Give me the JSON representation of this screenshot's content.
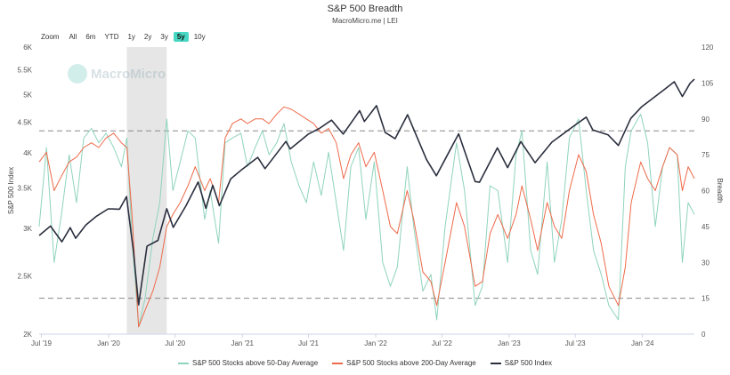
{
  "title": "S&P 500 Breadth",
  "subtitle": "MacroMicro.me | LEI",
  "watermark": "MacroMicro",
  "zoom": {
    "label": "Zoom",
    "buttons": [
      "All",
      "6m",
      "YTD",
      "1y",
      "2y",
      "3y",
      "5y",
      "10y"
    ],
    "active": "5y"
  },
  "colors": {
    "above50": "#8fd3bd",
    "above200": "#ee6a4a",
    "index": "#2b2f3e",
    "shade": "#e6e6e6",
    "refline": "#888888"
  },
  "chart_data": {
    "type": "line",
    "x_tick_labels": [
      "Jul '19",
      "Jan '20",
      "Jul '20",
      "Jan '21",
      "Jul '21",
      "Jan '22",
      "Jul '22",
      "Jan '23",
      "Jul '23",
      "Jan '24"
    ],
    "x_range": [
      "2019-06-25",
      "2024-05-22"
    ],
    "left_axis": {
      "label": "S&P 500 Index",
      "scale": "log",
      "ticks": [
        2000,
        2500,
        3000,
        3500,
        4000,
        4500,
        5000,
        5500,
        6000
      ],
      "tick_labels": [
        "2K",
        "2.5K",
        "3K",
        "3.5K",
        "4K",
        "4.5K",
        "5K",
        "5.5K",
        "6K"
      ],
      "range": [
        2000,
        6000
      ]
    },
    "right_axis": {
      "label": "Breadth",
      "ticks": [
        0,
        15,
        30,
        45,
        60,
        75,
        90,
        105,
        120
      ],
      "range": [
        0,
        120
      ]
    },
    "reference_lines": [
      {
        "axis": "right",
        "value": 85
      },
      {
        "axis": "right",
        "value": 15
      }
    ],
    "shaded_region": {
      "from": "2020-02-20",
      "to": "2020-06-08"
    },
    "series": [
      {
        "name": "S&P 500 Stocks above 50-Day Average",
        "axis": "right",
        "x": [
          "2019-06-25",
          "2019-07-15",
          "2019-08-05",
          "2019-08-25",
          "2019-09-15",
          "2019-10-05",
          "2019-10-25",
          "2019-11-15",
          "2019-12-05",
          "2019-12-25",
          "2020-01-15",
          "2020-02-05",
          "2020-02-20",
          "2020-03-05",
          "2020-03-23",
          "2020-04-10",
          "2020-05-01",
          "2020-05-20",
          "2020-06-08",
          "2020-06-25",
          "2020-07-15",
          "2020-08-05",
          "2020-08-25",
          "2020-09-20",
          "2020-10-05",
          "2020-10-28",
          "2020-11-15",
          "2020-12-05",
          "2020-12-28",
          "2021-01-15",
          "2021-02-05",
          "2021-02-25",
          "2021-03-15",
          "2021-04-05",
          "2021-04-25",
          "2021-05-15",
          "2021-06-05",
          "2021-06-25",
          "2021-07-15",
          "2021-08-05",
          "2021-08-25",
          "2021-09-15",
          "2021-10-05",
          "2021-10-25",
          "2021-11-15",
          "2021-12-05",
          "2021-12-28",
          "2022-01-20",
          "2022-02-10",
          "2022-03-01",
          "2022-03-28",
          "2022-04-15",
          "2022-05-10",
          "2022-06-01",
          "2022-06-17",
          "2022-07-10",
          "2022-08-10",
          "2022-09-01",
          "2022-09-30",
          "2022-10-20",
          "2022-11-10",
          "2022-12-01",
          "2022-12-28",
          "2023-01-20",
          "2023-02-05",
          "2023-03-01",
          "2023-03-20",
          "2023-04-15",
          "2023-05-05",
          "2023-05-25",
          "2023-06-15",
          "2023-07-10",
          "2023-07-31",
          "2023-08-20",
          "2023-09-10",
          "2023-10-01",
          "2023-10-27",
          "2023-11-15",
          "2023-12-01",
          "2023-12-27",
          "2024-01-15",
          "2024-02-05",
          "2024-02-25",
          "2024-03-15",
          "2024-04-05",
          "2024-04-19",
          "2024-05-05",
          "2024-05-22"
        ],
        "values": [
          45,
          78,
          30,
          50,
          75,
          55,
          82,
          86,
          80,
          84,
          78,
          70,
          82,
          40,
          3,
          15,
          40,
          55,
          90,
          60,
          72,
          85,
          82,
          48,
          60,
          38,
          80,
          82,
          84,
          70,
          78,
          85,
          75,
          80,
          88,
          72,
          62,
          55,
          72,
          58,
          76,
          55,
          35,
          70,
          78,
          48,
          72,
          30,
          20,
          28,
          70,
          45,
          18,
          25,
          6,
          45,
          80,
          60,
          12,
          20,
          62,
          60,
          30,
          75,
          85,
          35,
          25,
          72,
          30,
          48,
          82,
          90,
          60,
          35,
          25,
          12,
          6,
          70,
          85,
          92,
          80,
          45,
          70,
          78,
          75,
          30,
          55,
          50
        ]
      },
      {
        "name": "S&P 500 Stocks above 200-Day Average",
        "axis": "right",
        "x": [
          "2019-06-25",
          "2019-07-15",
          "2019-08-05",
          "2019-08-25",
          "2019-09-15",
          "2019-10-05",
          "2019-10-25",
          "2019-11-15",
          "2019-12-05",
          "2019-12-25",
          "2020-01-15",
          "2020-02-05",
          "2020-02-20",
          "2020-03-05",
          "2020-03-23",
          "2020-04-10",
          "2020-05-01",
          "2020-05-20",
          "2020-06-08",
          "2020-06-25",
          "2020-07-15",
          "2020-08-05",
          "2020-08-25",
          "2020-09-20",
          "2020-10-05",
          "2020-10-28",
          "2020-11-15",
          "2020-12-05",
          "2020-12-28",
          "2021-01-15",
          "2021-02-05",
          "2021-02-25",
          "2021-03-15",
          "2021-04-05",
          "2021-04-25",
          "2021-05-15",
          "2021-06-05",
          "2021-06-25",
          "2021-07-15",
          "2021-08-05",
          "2021-08-25",
          "2021-09-15",
          "2021-10-05",
          "2021-10-25",
          "2021-11-15",
          "2021-12-05",
          "2021-12-28",
          "2022-01-20",
          "2022-02-10",
          "2022-03-01",
          "2022-03-28",
          "2022-04-15",
          "2022-05-10",
          "2022-06-01",
          "2022-06-17",
          "2022-07-10",
          "2022-08-10",
          "2022-09-01",
          "2022-09-30",
          "2022-10-20",
          "2022-11-10",
          "2022-12-01",
          "2022-12-28",
          "2023-01-20",
          "2023-02-05",
          "2023-03-01",
          "2023-03-20",
          "2023-04-15",
          "2023-05-05",
          "2023-05-25",
          "2023-06-15",
          "2023-07-10",
          "2023-07-31",
          "2023-08-20",
          "2023-09-10",
          "2023-10-01",
          "2023-10-27",
          "2023-11-15",
          "2023-12-01",
          "2023-12-27",
          "2024-01-15",
          "2024-02-05",
          "2024-02-25",
          "2024-03-15",
          "2024-04-05",
          "2024-04-19",
          "2024-05-05",
          "2024-05-22"
        ],
        "values": [
          72,
          76,
          60,
          66,
          72,
          74,
          78,
          80,
          78,
          82,
          84,
          80,
          78,
          50,
          3,
          10,
          18,
          28,
          45,
          50,
          55,
          62,
          70,
          60,
          65,
          55,
          82,
          88,
          90,
          88,
          90,
          90,
          88,
          92,
          95,
          94,
          92,
          90,
          88,
          84,
          86,
          80,
          65,
          75,
          80,
          70,
          76,
          60,
          45,
          42,
          60,
          48,
          26,
          22,
          12,
          30,
          55,
          45,
          20,
          22,
          42,
          50,
          40,
          50,
          62,
          48,
          35,
          55,
          45,
          40,
          60,
          75,
          68,
          50,
          38,
          20,
          12,
          28,
          55,
          72,
          65,
          60,
          70,
          78,
          75,
          60,
          70,
          65
        ]
      },
      {
        "name": "S&P 500 Index",
        "axis": "left",
        "x": [
          "2019-06-25",
          "2019-07-26",
          "2019-08-26",
          "2019-09-18",
          "2019-10-03",
          "2019-10-31",
          "2019-11-29",
          "2019-12-31",
          "2020-01-31",
          "2020-02-19",
          "2020-03-09",
          "2020-03-23",
          "2020-04-15",
          "2020-05-15",
          "2020-06-08",
          "2020-06-26",
          "2020-07-31",
          "2020-09-02",
          "2020-09-23",
          "2020-10-12",
          "2020-10-30",
          "2020-11-30",
          "2020-12-31",
          "2021-02-12",
          "2021-03-04",
          "2021-04-30",
          "2021-05-12",
          "2021-06-30",
          "2021-07-31",
          "2021-09-02",
          "2021-10-04",
          "2021-11-18",
          "2021-12-01",
          "2022-01-03",
          "2022-01-27",
          "2022-02-23",
          "2022-03-29",
          "2022-05-20",
          "2022-06-16",
          "2022-07-31",
          "2022-08-16",
          "2022-09-30",
          "2022-10-12",
          "2022-11-30",
          "2022-12-28",
          "2023-02-02",
          "2023-03-13",
          "2023-04-28",
          "2023-06-30",
          "2023-07-31",
          "2023-08-18",
          "2023-09-29",
          "2023-10-27",
          "2023-11-30",
          "2023-12-29",
          "2024-02-29",
          "2024-03-28",
          "2024-04-19",
          "2024-05-10",
          "2024-05-22"
        ],
        "values": [
          2917,
          3025,
          2848,
          3006,
          2887,
          3038,
          3141,
          3231,
          3226,
          3386,
          2746,
          2237,
          2800,
          2863,
          3232,
          3009,
          3271,
          3580,
          3237,
          3535,
          3270,
          3622,
          3756,
          3934,
          3768,
          4181,
          4063,
          4298,
          4395,
          4537,
          4300,
          4704,
          4513,
          4796,
          4327,
          4225,
          4631,
          3901,
          3667,
          4130,
          4305,
          3586,
          3577,
          4080,
          3783,
          4179,
          3855,
          4169,
          4450,
          4589,
          4370,
          4288,
          4117,
          4568,
          4770,
          5096,
          5254,
          4967,
          5222,
          5307
        ]
      }
    ]
  }
}
